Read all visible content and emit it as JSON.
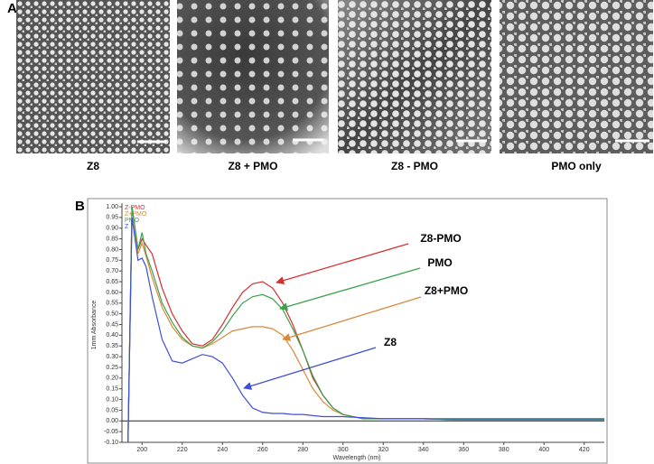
{
  "panel_a": {
    "label": "A",
    "micrographs": [
      {
        "label": "Z8"
      },
      {
        "label": "Z8 + PMO"
      },
      {
        "label": "Z8 - PMO"
      },
      {
        "label": "PMO only"
      }
    ]
  },
  "panel_b": {
    "label": "B"
  },
  "chart_data": {
    "type": "line",
    "xlabel": "Wavelength (nm)",
    "ylabel": "1mm Absorbance",
    "x": [
      193,
      195,
      198,
      200,
      202,
      205,
      210,
      215,
      220,
      225,
      230,
      235,
      240,
      245,
      250,
      255,
      260,
      265,
      270,
      275,
      280,
      285,
      290,
      295,
      300,
      310,
      320,
      340,
      360,
      380,
      400,
      420,
      430
    ],
    "series": [
      {
        "name": "Z-PMO",
        "color": "#d62f2f",
        "values": [
          -0.1,
          1.0,
          0.8,
          0.85,
          0.82,
          0.78,
          0.62,
          0.5,
          0.42,
          0.36,
          0.35,
          0.38,
          0.45,
          0.53,
          0.6,
          0.64,
          0.65,
          0.62,
          0.55,
          0.45,
          0.33,
          0.2,
          0.12,
          0.06,
          0.03,
          0.01,
          0.01,
          0.01,
          0.005,
          0.005,
          0.005,
          0.005,
          0.005
        ]
      },
      {
        "name": "Z+PMO",
        "color": "#d98a3c",
        "values": [
          -0.1,
          1.0,
          0.78,
          0.83,
          0.77,
          0.67,
          0.53,
          0.44,
          0.38,
          0.35,
          0.34,
          0.36,
          0.39,
          0.42,
          0.43,
          0.44,
          0.44,
          0.43,
          0.4,
          0.33,
          0.24,
          0.15,
          0.09,
          0.05,
          0.03,
          0.01,
          0.01,
          0.01,
          0.005,
          0.005,
          0.005,
          0.005,
          0.005
        ]
      },
      {
        "name": "PMO",
        "color": "#3aa24a",
        "values": [
          -0.1,
          1.0,
          0.8,
          0.88,
          0.78,
          0.7,
          0.55,
          0.46,
          0.39,
          0.35,
          0.34,
          0.37,
          0.42,
          0.49,
          0.55,
          0.58,
          0.59,
          0.57,
          0.52,
          0.43,
          0.33,
          0.21,
          0.12,
          0.06,
          0.03,
          0.01,
          0.01,
          0.01,
          0.005,
          0.005,
          0.005,
          0.005,
          0.005
        ]
      },
      {
        "name": "Z",
        "color": "#3e50d8",
        "values": [
          -0.1,
          0.95,
          0.75,
          0.76,
          0.72,
          0.58,
          0.38,
          0.28,
          0.27,
          0.29,
          0.31,
          0.3,
          0.27,
          0.2,
          0.12,
          0.06,
          0.04,
          0.035,
          0.035,
          0.03,
          0.03,
          0.025,
          0.02,
          0.02,
          0.02,
          0.015,
          0.01,
          0.01,
          0.01,
          0.01,
          0.01,
          0.01,
          0.01
        ]
      }
    ],
    "annotations": [
      {
        "text": "Z8-PMO",
        "color": "#d62f2f"
      },
      {
        "text": "PMO",
        "color": "#3aa24a"
      },
      {
        "text": "Z8+PMO",
        "color": "#d98a3c"
      },
      {
        "text": "Z8",
        "color": "#3e50d8"
      }
    ],
    "xlim": [
      190,
      430
    ],
    "xticks": [
      200,
      220,
      240,
      260,
      280,
      300,
      320,
      340,
      360,
      380,
      400,
      420
    ],
    "ylim": [
      -0.1,
      1.0
    ],
    "yticks": [
      {
        "value": -0.1,
        "label": "-0.10"
      },
      {
        "value": -0.05,
        "label": "-0.05"
      },
      {
        "value": 0,
        "label": "0.00"
      },
      {
        "value": 0.05,
        "label": "0.05"
      },
      {
        "value": 0.1,
        "label": "0.10"
      },
      {
        "value": 0.15,
        "label": "0.15"
      },
      {
        "value": 0.2,
        "label": "0.20"
      },
      {
        "value": 0.25,
        "label": "0.25"
      },
      {
        "value": 0.3,
        "label": "0.30"
      },
      {
        "value": 0.35,
        "label": "0.35"
      },
      {
        "value": 0.4,
        "label": "0.40"
      },
      {
        "value": 0.45,
        "label": "0.45"
      },
      {
        "value": 0.5,
        "label": "0.50"
      },
      {
        "value": 0.55,
        "label": "0.55"
      },
      {
        "value": 0.6,
        "label": "0.60"
      },
      {
        "value": 0.65,
        "label": "0.65"
      },
      {
        "value": 0.7,
        "label": "0.70"
      },
      {
        "value": 0.75,
        "label": "0.75"
      },
      {
        "value": 0.8,
        "label": "0.80"
      },
      {
        "value": 0.85,
        "label": "0.85"
      },
      {
        "value": 0.9,
        "label": "0.90"
      },
      {
        "value": 0.95,
        "label": "0.95"
      },
      {
        "value": 1.0,
        "label": "1.00"
      }
    ],
    "legend": "upper left",
    "grid": false
  }
}
